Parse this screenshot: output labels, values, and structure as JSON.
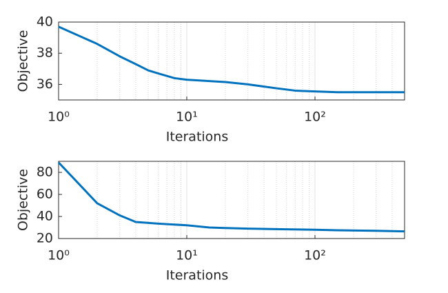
{
  "chart_data": [
    {
      "type": "line",
      "xscale": "log",
      "xlabel": "Iterations",
      "ylabel": "Objective",
      "x": [
        1,
        2,
        3,
        4,
        5,
        6,
        8,
        10,
        20,
        30,
        50,
        70,
        100,
        150,
        200,
        500
      ],
      "series": [
        {
          "color": "#0072bd",
          "values": [
            39.7,
            38.6,
            37.8,
            37.3,
            36.9,
            36.7,
            36.4,
            36.3,
            36.15,
            36.0,
            35.75,
            35.6,
            35.55,
            35.5,
            35.5,
            35.5
          ]
        }
      ],
      "xlim": [
        1,
        500
      ],
      "ylim": [
        35,
        40
      ],
      "xticks": [
        {
          "value": 1,
          "label": "10⁰"
        },
        {
          "value": 10,
          "label": "10¹"
        },
        {
          "value": 100,
          "label": "10²"
        }
      ],
      "yticks": [
        36,
        38,
        40
      ],
      "xminor": [
        2,
        3,
        4,
        5,
        6,
        7,
        8,
        9,
        20,
        30,
        40,
        50,
        60,
        70,
        80,
        90,
        200,
        300,
        400,
        500
      ],
      "grid": true
    },
    {
      "type": "line",
      "xscale": "log",
      "xlabel": "Iterations",
      "ylabel": "Objective",
      "x": [
        1,
        2,
        3,
        4,
        6,
        10,
        15,
        20,
        30,
        50,
        100,
        150,
        300,
        500
      ],
      "series": [
        {
          "color": "#0072bd",
          "values": [
            89,
            52,
            41,
            35,
            33.5,
            32,
            30,
            29.5,
            29,
            28.5,
            28,
            27.5,
            27,
            26.5
          ]
        }
      ],
      "xlim": [
        1,
        500
      ],
      "ylim": [
        20,
        90
      ],
      "xticks": [
        {
          "value": 1,
          "label": "10⁰"
        },
        {
          "value": 10,
          "label": "10¹"
        },
        {
          "value": 100,
          "label": "10²"
        }
      ],
      "yticks": [
        20,
        40,
        60,
        80
      ],
      "xminor": [
        2,
        3,
        4,
        5,
        6,
        7,
        8,
        9,
        20,
        30,
        40,
        50,
        60,
        70,
        80,
        90,
        200,
        300,
        400,
        500
      ],
      "grid": true
    }
  ]
}
